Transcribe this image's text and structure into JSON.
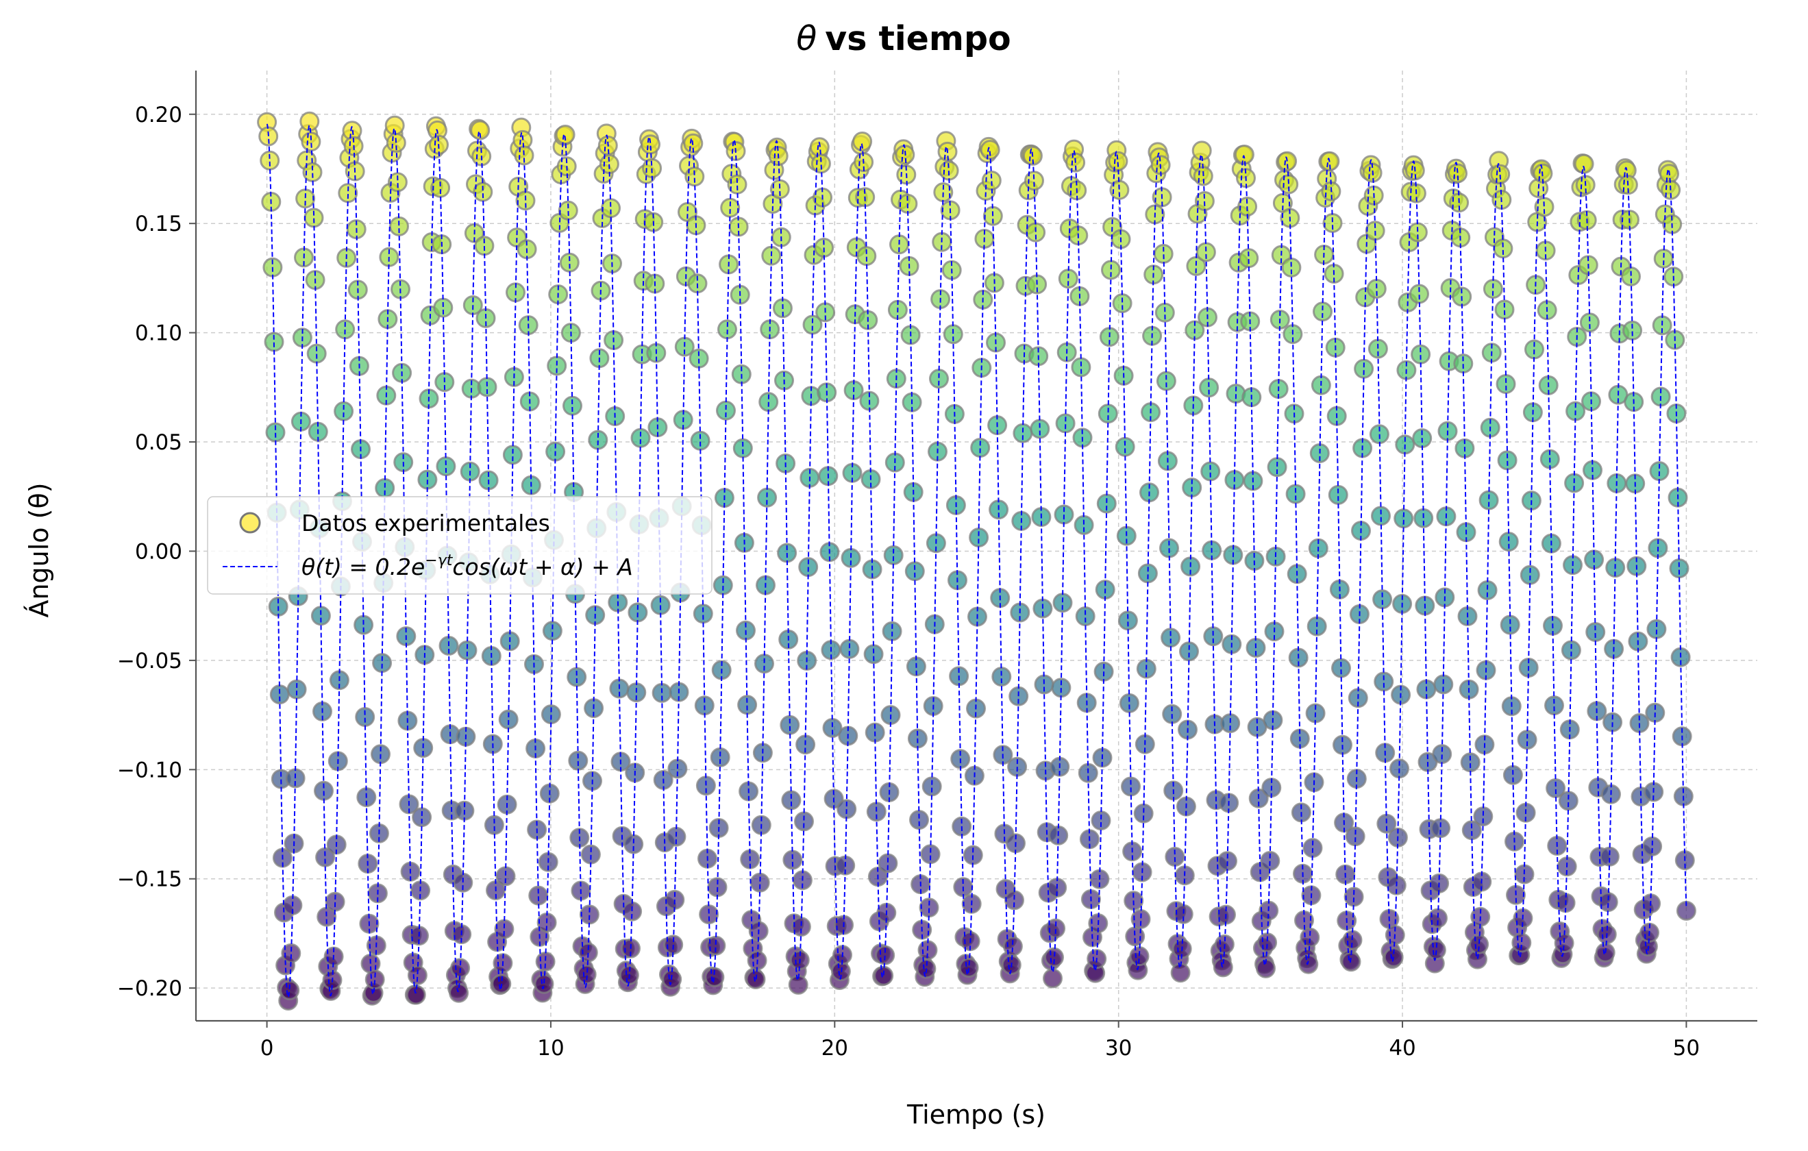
{
  "chart_data": {
    "type": "scatter",
    "title_symbol": "θ",
    "title_rest": "vs tiempo",
    "xlabel": "Tiempo (s)",
    "ylabel": "Ángulo (θ)",
    "xlim": [
      -2.5,
      52.5
    ],
    "ylim": [
      -0.215,
      0.22
    ],
    "xticks": [
      0,
      10,
      20,
      30,
      40,
      50
    ],
    "xtick_labels": [
      "0",
      "10",
      "20",
      "30",
      "40",
      "50"
    ],
    "yticks": [
      0.2,
      0.15,
      0.1,
      0.05,
      0.0,
      -0.05,
      -0.1,
      -0.15,
      -0.2
    ],
    "ytick_labels": [
      "0.20",
      "0.15",
      "0.10",
      "0.05",
      "0.00",
      "−0.05",
      "−0.10",
      "−0.15",
      "−0.20"
    ],
    "grid": true,
    "legend_position": "center-left",
    "colormap": "viridis",
    "series": [
      {
        "name": "Datos experimentales",
        "kind": "scatter",
        "color_by": "y",
        "num_points": 1000,
        "x_range": [
          0,
          50
        ]
      },
      {
        "name": "θ(t) = 0.2e^(−γt)cos(ωt + α) + A",
        "kind": "line",
        "style": "dashed",
        "color": "#0000ff",
        "amplitude": 0.2,
        "damping_gamma": 0.0022,
        "omega": 4.2,
        "alpha": 0.0,
        "offset_A": -0.0045
      }
    ],
    "legend": {
      "scatter_label": "Datos experimentales",
      "line_label_parts": [
        "θ(t) = 0.2e",
        "−γt",
        "cos(ωt + α) + A"
      ]
    }
  }
}
